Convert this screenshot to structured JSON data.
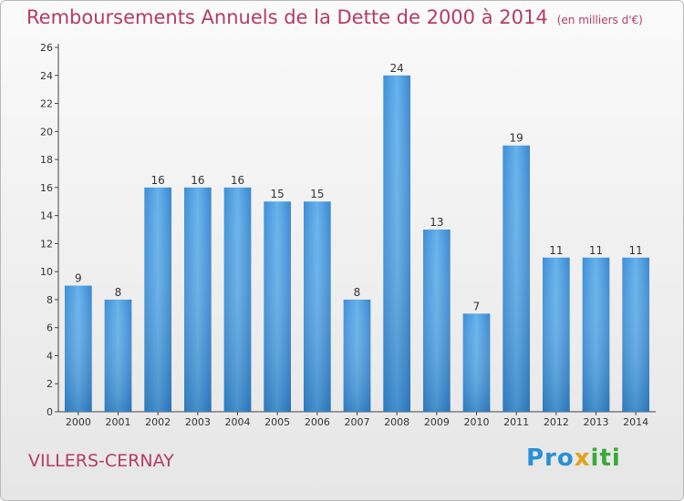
{
  "chart_data": {
    "type": "bar",
    "title": "Remboursements Annuels de la Dette de 2000 à 2014",
    "subtitle": "(en milliers d'€)",
    "categories": [
      "2000",
      "2001",
      "2002",
      "2003",
      "2004",
      "2005",
      "2006",
      "2007",
      "2008",
      "2009",
      "2010",
      "2011",
      "2012",
      "2013",
      "2014"
    ],
    "values": [
      9,
      8,
      16,
      16,
      16,
      15,
      15,
      8,
      24,
      13,
      7,
      19,
      11,
      11,
      11
    ],
    "ylim": [
      0,
      26
    ],
    "yticks": [
      0,
      2,
      4,
      6,
      8,
      10,
      12,
      14,
      16,
      18,
      20,
      22,
      24,
      26
    ],
    "grid": false,
    "bar_color": "#4a9de0"
  },
  "location": "VILLERS-CERNAY",
  "brand": {
    "part1": "Pro",
    "part2": "x",
    "part3": "iti"
  }
}
